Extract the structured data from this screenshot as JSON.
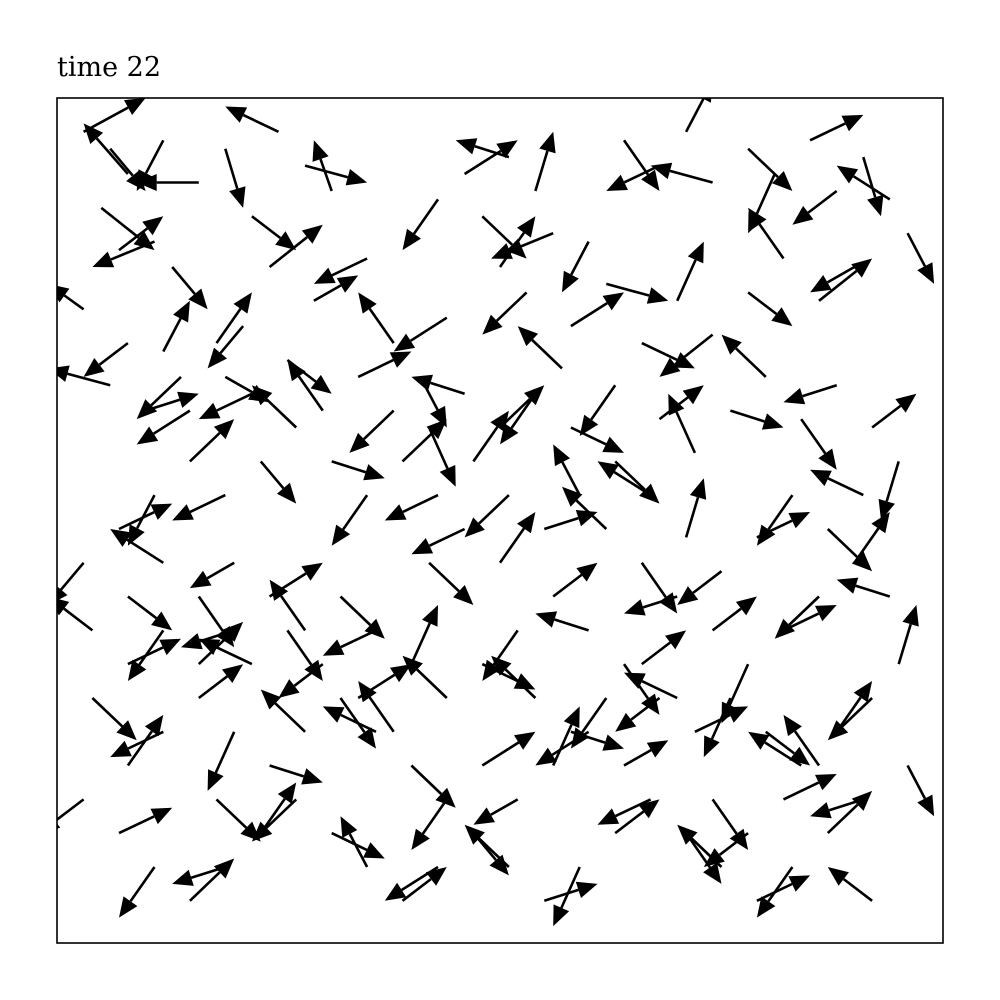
{
  "chart_data": {
    "type": "quiver",
    "title": "time 22",
    "xlabel": "",
    "ylabel": "",
    "xlim": [
      0,
      1
    ],
    "ylim": [
      0,
      1
    ],
    "grid": false,
    "axis_ticks": false,
    "arrow_color": "#000000",
    "arrows": [
      [
        0.03,
        0.96,
        0.07,
        0.04
      ],
      [
        0.06,
        0.94,
        0.04,
        -0.05
      ],
      [
        0.08,
        0.91,
        -0.05,
        0.06
      ],
      [
        0.12,
        0.95,
        -0.03,
        -0.06
      ],
      [
        0.05,
        0.87,
        0.06,
        -0.05
      ],
      [
        0.07,
        0.82,
        0.05,
        0.04
      ],
      [
        0.11,
        0.83,
        -0.07,
        -0.03
      ],
      [
        0.13,
        0.8,
        0.04,
        -0.05
      ],
      [
        0.03,
        0.75,
        -0.04,
        0.03
      ],
      [
        0.08,
        0.71,
        -0.05,
        -0.04
      ],
      [
        0.12,
        0.7,
        0.03,
        0.06
      ],
      [
        0.06,
        0.66,
        -0.07,
        0.02
      ],
      [
        0.15,
        0.63,
        -0.06,
        -0.04
      ],
      [
        0.19,
        0.67,
        0.05,
        -0.03
      ],
      [
        0.21,
        0.73,
        -0.04,
        -0.05
      ],
      [
        0.24,
        0.8,
        0.06,
        0.05
      ],
      [
        0.19,
        0.94,
        0.02,
        -0.07
      ],
      [
        0.16,
        0.9,
        -0.07,
        0.0
      ],
      [
        0.25,
        0.96,
        -0.06,
        0.03
      ],
      [
        0.28,
        0.92,
        0.07,
        -0.02
      ],
      [
        0.31,
        0.89,
        -0.02,
        0.06
      ],
      [
        0.22,
        0.86,
        0.05,
        -0.04
      ],
      [
        0.35,
        0.81,
        -0.06,
        -0.03
      ],
      [
        0.29,
        0.76,
        0.05,
        0.03
      ],
      [
        0.38,
        0.71,
        -0.04,
        0.06
      ],
      [
        0.41,
        0.67,
        0.03,
        -0.06
      ],
      [
        0.44,
        0.74,
        -0.06,
        -0.04
      ],
      [
        0.46,
        0.91,
        0.06,
        0.04
      ],
      [
        0.43,
        0.88,
        -0.04,
        -0.06
      ],
      [
        0.48,
        0.86,
        0.05,
        -0.05
      ],
      [
        0.51,
        0.93,
        -0.06,
        0.02
      ],
      [
        0.54,
        0.89,
        0.02,
        0.07
      ],
      [
        0.56,
        0.84,
        -0.07,
        -0.03
      ],
      [
        0.5,
        0.8,
        0.04,
        0.06
      ],
      [
        0.53,
        0.77,
        -0.05,
        -0.05
      ],
      [
        0.58,
        0.73,
        0.06,
        0.04
      ],
      [
        0.6,
        0.83,
        -0.03,
        -0.06
      ],
      [
        0.62,
        0.78,
        0.07,
        -0.02
      ],
      [
        0.57,
        0.68,
        -0.05,
        0.05
      ],
      [
        0.64,
        0.95,
        0.04,
        -0.06
      ],
      [
        0.68,
        0.92,
        -0.06,
        -0.03
      ],
      [
        0.71,
        0.96,
        0.03,
        0.06
      ],
      [
        0.74,
        0.9,
        -0.07,
        0.02
      ],
      [
        0.78,
        0.94,
        0.05,
        -0.05
      ],
      [
        0.81,
        0.91,
        -0.03,
        -0.07
      ],
      [
        0.85,
        0.95,
        0.06,
        0.03
      ],
      [
        0.88,
        0.89,
        -0.05,
        -0.04
      ],
      [
        0.91,
        0.93,
        0.02,
        -0.07
      ],
      [
        0.94,
        0.88,
        -0.06,
        0.04
      ],
      [
        0.96,
        0.84,
        0.03,
        -0.06
      ],
      [
        0.9,
        0.8,
        -0.05,
        -0.03
      ],
      [
        0.86,
        0.76,
        0.06,
        0.05
      ],
      [
        0.82,
        0.81,
        -0.04,
        0.06
      ],
      [
        0.78,
        0.77,
        0.05,
        -0.04
      ],
      [
        0.74,
        0.72,
        -0.06,
        -0.05
      ],
      [
        0.7,
        0.76,
        0.03,
        0.07
      ],
      [
        0.66,
        0.71,
        0.06,
        -0.03
      ],
      [
        0.63,
        0.66,
        -0.04,
        -0.06
      ],
      [
        0.68,
        0.62,
        0.05,
        0.04
      ],
      [
        0.72,
        0.58,
        -0.03,
        0.07
      ],
      [
        0.76,
        0.63,
        0.06,
        -0.02
      ],
      [
        0.8,
        0.67,
        -0.05,
        0.05
      ],
      [
        0.84,
        0.62,
        0.04,
        -0.06
      ],
      [
        0.88,
        0.66,
        -0.06,
        -0.02
      ],
      [
        0.92,
        0.61,
        0.05,
        0.04
      ],
      [
        0.95,
        0.57,
        -0.02,
        -0.07
      ],
      [
        0.91,
        0.53,
        -0.06,
        0.03
      ],
      [
        0.87,
        0.49,
        0.05,
        -0.05
      ],
      [
        0.83,
        0.53,
        -0.04,
        -0.06
      ],
      [
        0.79,
        0.48,
        0.06,
        0.03
      ],
      [
        0.75,
        0.44,
        -0.05,
        -0.04
      ],
      [
        0.71,
        0.48,
        0.02,
        0.07
      ],
      [
        0.67,
        0.53,
        -0.06,
        0.04
      ],
      [
        0.63,
        0.57,
        0.05,
        -0.05
      ],
      [
        0.59,
        0.53,
        -0.03,
        0.06
      ],
      [
        0.55,
        0.49,
        0.06,
        0.02
      ],
      [
        0.51,
        0.53,
        -0.05,
        -0.05
      ],
      [
        0.47,
        0.57,
        0.04,
        0.06
      ],
      [
        0.43,
        0.53,
        -0.06,
        -0.03
      ],
      [
        0.39,
        0.57,
        0.05,
        0.05
      ],
      [
        0.35,
        0.53,
        -0.04,
        -0.06
      ],
      [
        0.31,
        0.57,
        0.06,
        -0.02
      ],
      [
        0.27,
        0.61,
        -0.05,
        0.05
      ],
      [
        0.23,
        0.57,
        0.04,
        -0.05
      ],
      [
        0.19,
        0.53,
        -0.06,
        -0.03
      ],
      [
        0.15,
        0.57,
        0.05,
        0.05
      ],
      [
        0.11,
        0.53,
        -0.03,
        -0.06
      ],
      [
        0.07,
        0.49,
        0.06,
        0.03
      ],
      [
        0.03,
        0.45,
        -0.04,
        -0.05
      ],
      [
        0.08,
        0.41,
        0.05,
        -0.04
      ],
      [
        0.12,
        0.45,
        -0.06,
        0.04
      ],
      [
        0.16,
        0.41,
        0.04,
        -0.06
      ],
      [
        0.2,
        0.45,
        -0.05,
        -0.03
      ],
      [
        0.24,
        0.41,
        0.06,
        0.04
      ],
      [
        0.28,
        0.37,
        -0.04,
        0.06
      ],
      [
        0.32,
        0.41,
        0.05,
        -0.05
      ],
      [
        0.36,
        0.37,
        -0.06,
        -0.03
      ],
      [
        0.4,
        0.33,
        0.03,
        0.07
      ],
      [
        0.44,
        0.29,
        -0.05,
        0.05
      ],
      [
        0.48,
        0.33,
        0.06,
        -0.03
      ],
      [
        0.52,
        0.37,
        -0.04,
        -0.06
      ],
      [
        0.56,
        0.41,
        0.05,
        0.04
      ],
      [
        0.6,
        0.37,
        -0.06,
        0.02
      ],
      [
        0.64,
        0.33,
        0.04,
        -0.06
      ],
      [
        0.68,
        0.29,
        -0.05,
        -0.04
      ],
      [
        0.72,
        0.25,
        0.06,
        0.03
      ],
      [
        0.76,
        0.29,
        -0.03,
        -0.07
      ],
      [
        0.8,
        0.25,
        0.05,
        -0.04
      ],
      [
        0.84,
        0.21,
        -0.06,
        0.04
      ],
      [
        0.88,
        0.25,
        0.04,
        0.06
      ],
      [
        0.92,
        0.29,
        -0.05,
        -0.05
      ],
      [
        0.95,
        0.33,
        0.02,
        0.07
      ],
      [
        0.91,
        0.17,
        -0.06,
        -0.02
      ],
      [
        0.87,
        0.13,
        0.05,
        0.05
      ],
      [
        0.83,
        0.09,
        -0.04,
        -0.06
      ],
      [
        0.79,
        0.05,
        0.06,
        0.03
      ],
      [
        0.75,
        0.09,
        -0.05,
        0.05
      ],
      [
        0.71,
        0.13,
        0.04,
        -0.06
      ],
      [
        0.67,
        0.17,
        -0.06,
        -0.03
      ],
      [
        0.63,
        0.13,
        0.05,
        0.04
      ],
      [
        0.59,
        0.09,
        -0.03,
        -0.07
      ],
      [
        0.55,
        0.05,
        0.06,
        0.02
      ],
      [
        0.51,
        0.09,
        -0.05,
        0.05
      ],
      [
        0.47,
        0.13,
        0.04,
        -0.05
      ],
      [
        0.43,
        0.09,
        -0.06,
        -0.04
      ],
      [
        0.39,
        0.05,
        0.05,
        0.04
      ],
      [
        0.35,
        0.09,
        -0.03,
        0.06
      ],
      [
        0.31,
        0.13,
        0.06,
        -0.03
      ],
      [
        0.27,
        0.17,
        -0.05,
        -0.05
      ],
      [
        0.23,
        0.13,
        0.04,
        0.06
      ],
      [
        0.19,
        0.09,
        -0.06,
        -0.02
      ],
      [
        0.15,
        0.05,
        0.05,
        0.05
      ],
      [
        0.11,
        0.09,
        -0.04,
        -0.06
      ],
      [
        0.07,
        0.13,
        0.06,
        0.03
      ],
      [
        0.03,
        0.17,
        -0.05,
        -0.04
      ],
      [
        0.08,
        0.21,
        0.04,
        0.06
      ],
      [
        0.12,
        0.25,
        -0.06,
        -0.03
      ],
      [
        0.16,
        0.29,
        0.05,
        0.04
      ],
      [
        0.2,
        0.25,
        -0.03,
        -0.07
      ],
      [
        0.24,
        0.21,
        0.06,
        -0.02
      ],
      [
        0.28,
        0.25,
        -0.05,
        0.05
      ],
      [
        0.32,
        0.29,
        0.04,
        -0.06
      ],
      [
        0.36,
        0.25,
        -0.06,
        0.03
      ],
      [
        0.4,
        0.21,
        0.05,
        -0.05
      ],
      [
        0.44,
        0.17,
        -0.04,
        -0.06
      ],
      [
        0.48,
        0.21,
        0.06,
        0.04
      ],
      [
        0.52,
        0.17,
        -0.05,
        -0.03
      ],
      [
        0.56,
        0.21,
        0.03,
        0.07
      ],
      [
        0.6,
        0.25,
        -0.06,
        -0.04
      ],
      [
        0.64,
        0.21,
        0.05,
        0.03
      ],
      [
        0.1,
        0.63,
        0.06,
        0.02
      ],
      [
        0.14,
        0.67,
        -0.05,
        -0.05
      ],
      [
        0.18,
        0.71,
        0.04,
        0.06
      ],
      [
        0.22,
        0.65,
        -0.06,
        -0.03
      ],
      [
        0.26,
        0.69,
        0.05,
        -0.04
      ],
      [
        0.3,
        0.63,
        -0.04,
        0.06
      ],
      [
        0.34,
        0.67,
        0.06,
        0.03
      ],
      [
        0.38,
        0.63,
        -0.05,
        -0.05
      ],
      [
        0.42,
        0.61,
        0.03,
        -0.07
      ],
      [
        0.46,
        0.65,
        -0.06,
        0.02
      ],
      [
        0.5,
        0.61,
        0.05,
        0.05
      ],
      [
        0.54,
        0.65,
        -0.04,
        -0.06
      ],
      [
        0.58,
        0.61,
        0.06,
        -0.03
      ],
      [
        0.62,
        0.49,
        -0.05,
        0.05
      ],
      [
        0.66,
        0.45,
        0.04,
        -0.06
      ],
      [
        0.7,
        0.41,
        -0.06,
        -0.02
      ],
      [
        0.74,
        0.37,
        0.05,
        0.04
      ],
      [
        0.78,
        0.33,
        -0.03,
        -0.07
      ],
      [
        0.82,
        0.37,
        0.06,
        0.03
      ],
      [
        0.86,
        0.41,
        -0.05,
        -0.05
      ],
      [
        0.9,
        0.45,
        0.04,
        0.06
      ],
      [
        0.94,
        0.41,
        -0.06,
        0.02
      ],
      [
        0.96,
        0.21,
        0.03,
        -0.06
      ],
      [
        0.92,
        0.05,
        -0.05,
        0.04
      ],
      [
        0.18,
        0.17,
        0.05,
        -0.05
      ],
      [
        0.22,
        0.33,
        -0.06,
        0.03
      ],
      [
        0.26,
        0.37,
        0.04,
        -0.06
      ],
      [
        0.3,
        0.33,
        -0.05,
        -0.04
      ],
      [
        0.34,
        0.29,
        0.06,
        0.04
      ],
      [
        0.38,
        0.25,
        -0.04,
        0.06
      ],
      [
        0.42,
        0.45,
        0.05,
        -0.05
      ],
      [
        0.46,
        0.49,
        -0.06,
        -0.03
      ],
      [
        0.5,
        0.45,
        0.04,
        0.06
      ],
      [
        0.54,
        0.29,
        -0.05,
        0.05
      ],
      [
        0.58,
        0.25,
        0.06,
        -0.02
      ],
      [
        0.62,
        0.29,
        -0.04,
        -0.06
      ],
      [
        0.66,
        0.33,
        0.05,
        0.04
      ],
      [
        0.7,
        0.29,
        -0.06,
        0.03
      ],
      [
        0.74,
        0.17,
        0.04,
        -0.06
      ],
      [
        0.78,
        0.13,
        -0.05,
        -0.04
      ],
      [
        0.82,
        0.17,
        0.06,
        0.03
      ],
      [
        0.86,
        0.21,
        -0.04,
        0.06
      ],
      [
        0.04,
        0.29,
        0.05,
        -0.05
      ],
      [
        0.04,
        0.37,
        -0.05,
        0.04
      ],
      [
        0.08,
        0.33,
        0.06,
        0.03
      ],
      [
        0.12,
        0.37,
        -0.04,
        -0.06
      ],
      [
        0.16,
        0.33,
        0.05,
        0.05
      ],
      [
        0.2,
        0.37,
        -0.06,
        -0.02
      ]
    ]
  }
}
